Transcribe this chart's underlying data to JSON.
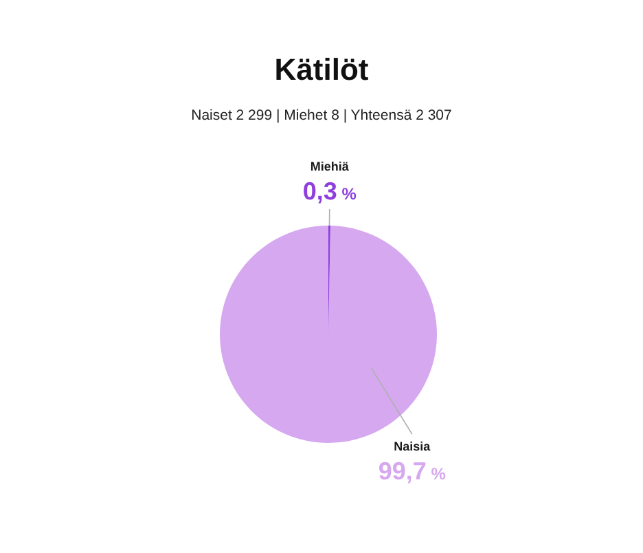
{
  "chart_data": {
    "type": "pie",
    "title": "Kätilöt",
    "subtitle": "Naiset 2 299 | Miehet 8 | Yhteensä 2 307",
    "categories": [
      "Naisia",
      "Miehiä"
    ],
    "values": [
      99.7,
      0.3
    ],
    "colors": [
      "#d6a8ef",
      "#8e3fdc"
    ],
    "value_labels": [
      "99,7 %",
      "0,3 %"
    ]
  }
}
